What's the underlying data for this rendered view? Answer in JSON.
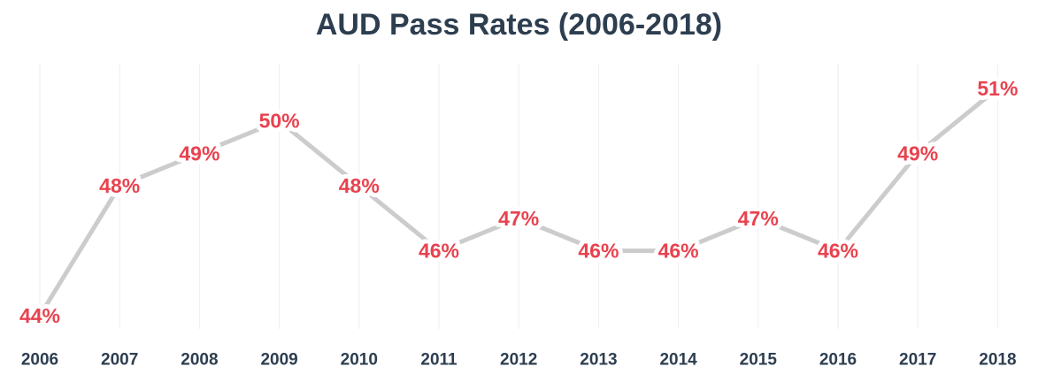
{
  "colors": {
    "title": "#2d3e50",
    "line": "#cccccc",
    "grid": "#eeeeee",
    "data_label": "#e8424f",
    "tick_label": "#2d3e50",
    "background": "#ffffff"
  },
  "chart_data": {
    "type": "line",
    "title": "AUD Pass Rates (2006-2018)",
    "xlabel": "",
    "ylabel": "",
    "grid": "vertical",
    "categories": [
      "2006",
      "2007",
      "2008",
      "2009",
      "2010",
      "2011",
      "2012",
      "2013",
      "2014",
      "2015",
      "2016",
      "2017",
      "2018"
    ],
    "values": [
      44,
      48,
      49,
      50,
      48,
      46,
      47,
      46,
      46,
      47,
      46,
      49,
      51
    ],
    "value_labels": [
      "44%",
      "48%",
      "49%",
      "50%",
      "48%",
      "46%",
      "47%",
      "46%",
      "46%",
      "47%",
      "46%",
      "49%",
      "51%"
    ],
    "ylim": [
      44,
      51
    ]
  }
}
